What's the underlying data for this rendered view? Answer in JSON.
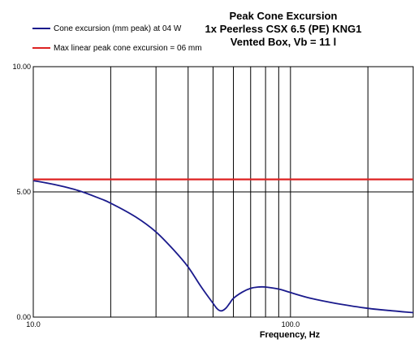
{
  "chart_data": {
    "type": "line",
    "title_lines": [
      "Peak Cone Excursion",
      "1x Peerless CSX 6.5 (PE) KNG1",
      "Vented Box, Vb = 11 l"
    ],
    "xlabel": "Frequency, Hz",
    "ylabel": "",
    "x_scale": "log",
    "xlim": [
      10,
      300
    ],
    "ylim": [
      0,
      10
    ],
    "x_tick_labels": [
      {
        "value": 10,
        "label": "10.0"
      },
      {
        "value": 100,
        "label": "100.0"
      }
    ],
    "x_gridlines": [
      20,
      30,
      40,
      50,
      60,
      70,
      80,
      90,
      200
    ],
    "y_tick_labels": [
      {
        "value": 0,
        "label": "0.00"
      },
      {
        "value": 5,
        "label": "5.00"
      },
      {
        "value": 10,
        "label": "10.00"
      }
    ],
    "series": [
      {
        "name": "Cone excursion (mm peak) at 04 W",
        "color": "#1a1a8c",
        "x": [
          10,
          12,
          15,
          18,
          20,
          25,
          30,
          35,
          40,
          45,
          50,
          52,
          54,
          56,
          58,
          60,
          65,
          70,
          75,
          80,
          90,
          100,
          120,
          150,
          200,
          250,
          300
        ],
        "y": [
          5.45,
          5.3,
          5.05,
          4.75,
          4.55,
          4.0,
          3.4,
          2.7,
          2.0,
          1.2,
          0.55,
          0.32,
          0.25,
          0.35,
          0.55,
          0.75,
          1.0,
          1.15,
          1.2,
          1.2,
          1.12,
          0.98,
          0.75,
          0.55,
          0.35,
          0.25,
          0.18
        ]
      },
      {
        "name": "Max linear peak cone excursion = 06 mm",
        "color": "#dd2222",
        "x": [
          10,
          300
        ],
        "y": [
          5.5,
          5.5
        ]
      }
    ],
    "legend_position": "top-left",
    "grid": true
  }
}
